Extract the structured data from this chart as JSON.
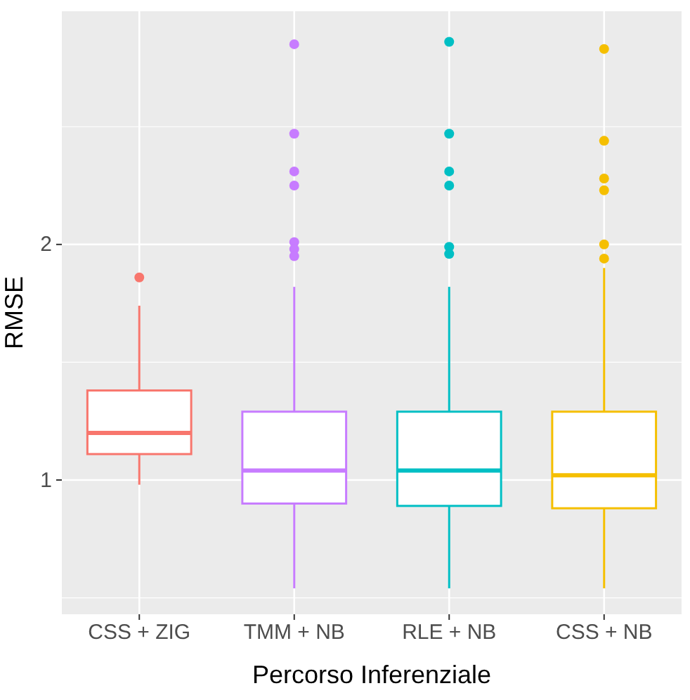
{
  "chart_data": {
    "type": "box",
    "xlabel": "Percorso Inferenziale",
    "ylabel": "RMSE",
    "categories": [
      "CSS + ZIG",
      "TMM + NB",
      "RLE + NB",
      "CSS + NB"
    ],
    "colors": [
      "#f8766d",
      "#c77cff",
      "#00bfc4",
      "#f5bf00"
    ],
    "boxes": [
      {
        "low": 0.98,
        "q1": 1.11,
        "median": 1.2,
        "q3": 1.38,
        "high": 1.74,
        "outliers": [
          1.86
        ]
      },
      {
        "low": 0.54,
        "q1": 0.9,
        "median": 1.04,
        "q3": 1.29,
        "high": 1.82,
        "outliers": [
          2.85,
          2.47,
          2.31,
          2.25,
          2.01,
          1.98,
          1.95
        ]
      },
      {
        "low": 0.54,
        "q1": 0.89,
        "median": 1.04,
        "q3": 1.29,
        "high": 1.82,
        "outliers": [
          2.86,
          2.47,
          2.31,
          2.25,
          1.99,
          1.96
        ]
      },
      {
        "low": 0.54,
        "q1": 0.88,
        "median": 1.02,
        "q3": 1.29,
        "high": 1.9,
        "outliers": [
          2.83,
          2.44,
          2.28,
          2.23,
          2.0,
          1.94
        ]
      }
    ],
    "ylim": [
      0.43,
      2.99
    ],
    "yticks": [
      1,
      2
    ],
    "grid": true
  }
}
